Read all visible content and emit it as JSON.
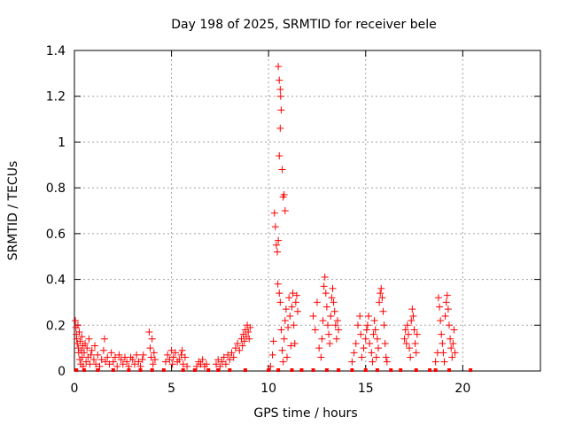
{
  "chart_data": {
    "type": "scatter",
    "title": "Day 198 of 2025, SRMTID for receiver bele",
    "xlabel": "GPS time / hours",
    "ylabel": "SRMTID / TECUs",
    "xlim": [
      0,
      24
    ],
    "ylim": [
      0,
      1.4
    ],
    "xticks": [
      0,
      5,
      10,
      15,
      20
    ],
    "xtick_labels": [
      "0",
      "5",
      "10",
      "15",
      "20"
    ],
    "yticks": [
      0,
      0.2,
      0.4,
      0.6,
      0.8,
      1,
      1.2,
      1.4
    ],
    "ytick_labels": [
      "0",
      "0.2",
      "0.4",
      "0.6",
      "0.8",
      "1",
      "1.2",
      "1.4"
    ],
    "grid": true,
    "marker": "+",
    "marker_color": "#ff0000",
    "series": [
      {
        "name": "SRMTID",
        "points": [
          [
            0.05,
            0.22
          ],
          [
            0.08,
            0.19
          ],
          [
            0.1,
            0.16
          ],
          [
            0.12,
            0.14
          ],
          [
            0.15,
            0.12
          ],
          [
            0.18,
            0.2
          ],
          [
            0.2,
            0.1
          ],
          [
            0.22,
            0.08
          ],
          [
            0.25,
            0.17
          ],
          [
            0.28,
            0.05
          ],
          [
            0.3,
            0.13
          ],
          [
            0.33,
            0.03
          ],
          [
            0.35,
            0.09
          ],
          [
            0.38,
            0.15
          ],
          [
            0.4,
            0.06
          ],
          [
            0.43,
            0.11
          ],
          [
            0.45,
            0.02
          ],
          [
            0.5,
            0.08
          ],
          [
            0.55,
            0.12
          ],
          [
            0.6,
            0.04
          ],
          [
            0.65,
            0.1
          ],
          [
            0.7,
            0.06
          ],
          [
            0.75,
            0.14
          ],
          [
            0.8,
            0.03
          ],
          [
            0.85,
            0.07
          ],
          [
            0.9,
            0.09
          ],
          [
            1.0,
            0.05
          ],
          [
            1.05,
            0.11
          ],
          [
            1.1,
            0.03
          ],
          [
            1.2,
            0.07
          ],
          [
            1.3,
            0.02
          ],
          [
            1.4,
            0.05
          ],
          [
            1.5,
            0.09
          ],
          [
            1.55,
            0.14
          ],
          [
            1.6,
            0.04
          ],
          [
            1.7,
            0.06
          ],
          [
            1.8,
            0.03
          ],
          [
            1.9,
            0.08
          ],
          [
            2.0,
            0.04
          ],
          [
            2.1,
            0.06
          ],
          [
            2.2,
            0.02
          ],
          [
            2.3,
            0.07
          ],
          [
            2.4,
            0.05
          ],
          [
            2.5,
            0.03
          ],
          [
            2.6,
            0.06
          ],
          [
            2.7,
            0.04
          ],
          [
            2.8,
            0.02
          ],
          [
            2.9,
            0.06
          ],
          [
            3.0,
            0.05
          ],
          [
            3.1,
            0.03
          ],
          [
            3.2,
            0.07
          ],
          [
            3.3,
            0.04
          ],
          [
            3.4,
            0.02
          ],
          [
            3.5,
            0.05
          ],
          [
            3.55,
            0.07
          ],
          [
            3.85,
            0.17
          ],
          [
            3.9,
            0.1
          ],
          [
            3.95,
            0.06
          ],
          [
            4.0,
            0.14
          ],
          [
            4.05,
            0.03
          ],
          [
            4.1,
            0.08
          ],
          [
            4.15,
            0.05
          ],
          [
            4.7,
            0.04
          ],
          [
            4.8,
            0.07
          ],
          [
            4.9,
            0.05
          ],
          [
            5.0,
            0.09
          ],
          [
            5.05,
            0.03
          ],
          [
            5.1,
            0.06
          ],
          [
            5.2,
            0.08
          ],
          [
            5.3,
            0.04
          ],
          [
            5.4,
            0.05
          ],
          [
            5.5,
            0.07
          ],
          [
            5.55,
            0.09
          ],
          [
            5.6,
            0.03
          ],
          [
            5.7,
            0.06
          ],
          [
            5.8,
            0.02
          ],
          [
            6.3,
            0.02
          ],
          [
            6.4,
            0.04
          ],
          [
            6.5,
            0.03
          ],
          [
            6.6,
            0.05
          ],
          [
            6.7,
            0.02
          ],
          [
            6.8,
            0.03
          ],
          [
            7.3,
            0.03
          ],
          [
            7.4,
            0.05
          ],
          [
            7.5,
            0.02
          ],
          [
            7.6,
            0.04
          ],
          [
            7.7,
            0.06
          ],
          [
            7.8,
            0.03
          ],
          [
            7.9,
            0.07
          ],
          [
            8.0,
            0.05
          ],
          [
            8.1,
            0.08
          ],
          [
            8.2,
            0.06
          ],
          [
            8.3,
            0.1
          ],
          [
            8.4,
            0.12
          ],
          [
            8.5,
            0.09
          ],
          [
            8.6,
            0.14
          ],
          [
            8.65,
            0.11
          ],
          [
            8.7,
            0.16
          ],
          [
            8.75,
            0.13
          ],
          [
            8.8,
            0.18
          ],
          [
            8.85,
            0.15
          ],
          [
            8.9,
            0.2
          ],
          [
            8.95,
            0.17
          ],
          [
            9.0,
            0.14
          ],
          [
            9.05,
            0.19
          ],
          [
            10.1,
            0.02
          ],
          [
            10.2,
            0.07
          ],
          [
            10.25,
            0.13
          ],
          [
            10.3,
            0.69
          ],
          [
            10.35,
            0.63
          ],
          [
            10.4,
            0.55
          ],
          [
            10.45,
            0.52
          ],
          [
            10.5,
            0.57
          ],
          [
            10.55,
            0.94
          ],
          [
            10.6,
            1.06
          ],
          [
            10.65,
            1.14
          ],
          [
            10.7,
            0.88
          ],
          [
            10.75,
            0.76
          ],
          [
            10.8,
            0.77
          ],
          [
            10.85,
            0.7
          ],
          [
            10.5,
            1.33
          ],
          [
            10.55,
            1.27
          ],
          [
            10.6,
            1.23
          ],
          [
            10.62,
            1.2
          ],
          [
            10.48,
            0.38
          ],
          [
            10.55,
            0.34
          ],
          [
            10.6,
            0.3
          ],
          [
            10.65,
            0.18
          ],
          [
            10.7,
            0.09
          ],
          [
            10.75,
            0.04
          ],
          [
            10.8,
            0.14
          ],
          [
            10.85,
            0.22
          ],
          [
            10.9,
            0.27
          ],
          [
            10.95,
            0.06
          ],
          [
            11.0,
            0.19
          ],
          [
            11.05,
            0.32
          ],
          [
            11.1,
            0.24
          ],
          [
            11.15,
            0.11
          ],
          [
            11.2,
            0.28
          ],
          [
            11.25,
            0.34
          ],
          [
            11.3,
            0.2
          ],
          [
            11.35,
            0.12
          ],
          [
            11.4,
            0.3
          ],
          [
            11.45,
            0.33
          ],
          [
            11.5,
            0.26
          ],
          [
            12.3,
            0.24
          ],
          [
            12.4,
            0.18
          ],
          [
            12.5,
            0.3
          ],
          [
            12.6,
            0.1
          ],
          [
            12.7,
            0.06
          ],
          [
            12.75,
            0.14
          ],
          [
            12.8,
            0.22
          ],
          [
            12.85,
            0.37
          ],
          [
            12.9,
            0.41
          ],
          [
            12.95,
            0.34
          ],
          [
            13.0,
            0.28
          ],
          [
            13.05,
            0.2
          ],
          [
            13.1,
            0.16
          ],
          [
            13.15,
            0.12
          ],
          [
            13.2,
            0.24
          ],
          [
            13.25,
            0.32
          ],
          [
            13.3,
            0.36
          ],
          [
            13.35,
            0.3
          ],
          [
            13.4,
            0.26
          ],
          [
            13.45,
            0.2
          ],
          [
            13.5,
            0.14
          ],
          [
            13.55,
            0.22
          ],
          [
            13.6,
            0.18
          ],
          [
            14.3,
            0.04
          ],
          [
            14.4,
            0.08
          ],
          [
            14.5,
            0.12
          ],
          [
            14.6,
            0.2
          ],
          [
            14.7,
            0.24
          ],
          [
            14.75,
            0.16
          ],
          [
            14.8,
            0.06
          ],
          [
            14.9,
            0.1
          ],
          [
            15.0,
            0.14
          ],
          [
            15.05,
            0.18
          ],
          [
            15.1,
            0.2
          ],
          [
            15.15,
            0.24
          ],
          [
            15.2,
            0.12
          ],
          [
            15.3,
            0.08
          ],
          [
            15.35,
            0.04
          ],
          [
            15.4,
            0.16
          ],
          [
            15.45,
            0.22
          ],
          [
            15.5,
            0.18
          ],
          [
            15.55,
            0.06
          ],
          [
            15.6,
            0.14
          ],
          [
            15.65,
            0.1
          ],
          [
            15.7,
            0.3
          ],
          [
            15.75,
            0.34
          ],
          [
            15.8,
            0.36
          ],
          [
            15.85,
            0.32
          ],
          [
            15.9,
            0.26
          ],
          [
            15.95,
            0.2
          ],
          [
            16.0,
            0.12
          ],
          [
            16.05,
            0.06
          ],
          [
            16.1,
            0.04
          ],
          [
            17.0,
            0.14
          ],
          [
            17.05,
            0.18
          ],
          [
            17.1,
            0.12
          ],
          [
            17.15,
            0.2
          ],
          [
            17.2,
            0.16
          ],
          [
            17.25,
            0.1
          ],
          [
            17.3,
            0.06
          ],
          [
            17.35,
            0.22
          ],
          [
            17.4,
            0.27
          ],
          [
            17.45,
            0.24
          ],
          [
            17.5,
            0.18
          ],
          [
            17.55,
            0.12
          ],
          [
            17.6,
            0.08
          ],
          [
            17.65,
            0.16
          ],
          [
            18.6,
            0.04
          ],
          [
            18.7,
            0.08
          ],
          [
            18.75,
            0.32
          ],
          [
            18.8,
            0.28
          ],
          [
            18.85,
            0.22
          ],
          [
            18.9,
            0.16
          ],
          [
            18.95,
            0.12
          ],
          [
            19.0,
            0.08
          ],
          [
            19.05,
            0.04
          ],
          [
            19.1,
            0.24
          ],
          [
            19.15,
            0.3
          ],
          [
            19.2,
            0.33
          ],
          [
            19.25,
            0.27
          ],
          [
            19.3,
            0.2
          ],
          [
            19.35,
            0.14
          ],
          [
            19.4,
            0.1
          ],
          [
            19.45,
            0.06
          ],
          [
            19.5,
            0.12
          ],
          [
            19.55,
            0.18
          ],
          [
            19.6,
            0.08
          ]
        ]
      }
    ],
    "zero_markers": [
      0.1,
      0.5,
      1.2,
      2.0,
      2.8,
      3.4,
      4.0,
      4.6,
      5.6,
      6.2,
      6.9,
      7.4,
      8.0,
      8.8,
      10.0,
      10.5,
      11.2,
      11.7,
      12.3,
      13.0,
      13.6,
      14.3,
      15.0,
      15.6,
      16.3,
      16.8,
      17.6,
      18.3,
      18.6,
      19.3,
      20.4
    ]
  }
}
